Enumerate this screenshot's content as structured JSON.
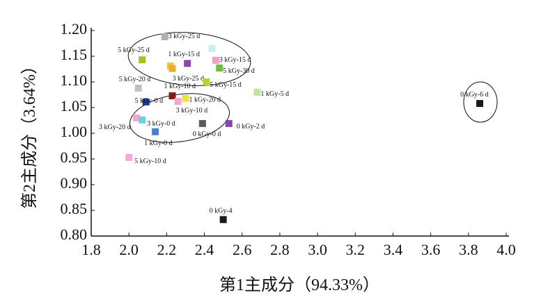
{
  "chart_data": {
    "type": "scatter",
    "x_label": "第1主成分（94.33%）",
    "y_label": "第2主成分（3.64%）",
    "xlim": [
      1.8,
      4.0
    ],
    "ylim": [
      0.8,
      1.2
    ],
    "xticks": [
      1.8,
      {
        "value": 2.0,
        "label": "2.0"
      },
      2.2,
      2.4,
      2.6,
      2.8,
      {
        "value": 3.0,
        "label": "3.0"
      },
      3.2,
      3.4,
      3.6,
      3.8,
      {
        "value": 4.0,
        "label": "4.0"
      }
    ],
    "yticks": [
      {
        "value": 0.8,
        "label": "0.80"
      },
      {
        "value": 0.85,
        "label": "0.85"
      },
      {
        "value": 0.9,
        "label": "0.90"
      },
      {
        "value": 0.95,
        "label": "0.95"
      },
      {
        "value": 1.0,
        "label": "1.00"
      },
      {
        "value": 1.05,
        "label": "1.05"
      },
      {
        "value": 1.1,
        "label": "1.10"
      },
      {
        "value": 1.15,
        "label": "1.15"
      },
      {
        "value": 1.2,
        "label": "1.20"
      }
    ],
    "x": [
      2.19,
      2.07,
      2.44,
      2.22,
      2.23,
      2.31,
      2.46,
      2.48,
      2.05,
      2.41,
      2.68,
      2.23,
      2.3,
      2.26,
      2.09,
      3.86,
      2.04,
      2.07,
      2.39,
      2.53,
      2.14,
      2.0,
      2.5
    ],
    "y": [
      1.188,
      1.143,
      1.165,
      1.131,
      1.126,
      1.136,
      1.142,
      1.127,
      1.088,
      1.1,
      1.08,
      1.073,
      1.068,
      1.062,
      1.061,
      1.058,
      1.03,
      1.026,
      1.019,
      1.019,
      1.003,
      0.953,
      0.832
    ],
    "labels": [
      "3 kGy-25 d",
      "5 kGy-25 d",
      "1 kGy-15 d",
      null,
      "3 kGy-25 d",
      null,
      "3 kGy-15 d",
      "5 kGy-30 d",
      "5 kGy-20 d",
      "5 kGy-15 d",
      "1 kGy-5 d",
      "1 kGy-10 d",
      "1 kGy-20 d",
      "3 kGy-10 d",
      "5 kGy-0 d",
      "0 kGy-6 d",
      "3 kGy-20 d",
      "3 kGy-0 d",
      "0 kGy-0 d",
      "0 kGy-2 d",
      "1 kGy-0 d",
      "5 kGy-10 d",
      "0 kGy-4"
    ],
    "colors": [
      "#b0b0b0",
      "#a6c21c",
      "#c9ecf7",
      "#f2c340",
      "#e8b030",
      "#8e44ad",
      "#f2a0c8",
      "#6cc03a",
      "#c0c0c0",
      "#b8d12c",
      "#b6e6a0",
      "#8b1a1a",
      "#f0e040",
      "#f4a8d0",
      "#1f3a93",
      "#1a1a1a",
      "#f4a8d0",
      "#6ad2d8",
      "#5a5a5a",
      "#8e44ad",
      "#4a7fd0",
      "#f4a8d8",
      "#1a1a1a"
    ]
  }
}
